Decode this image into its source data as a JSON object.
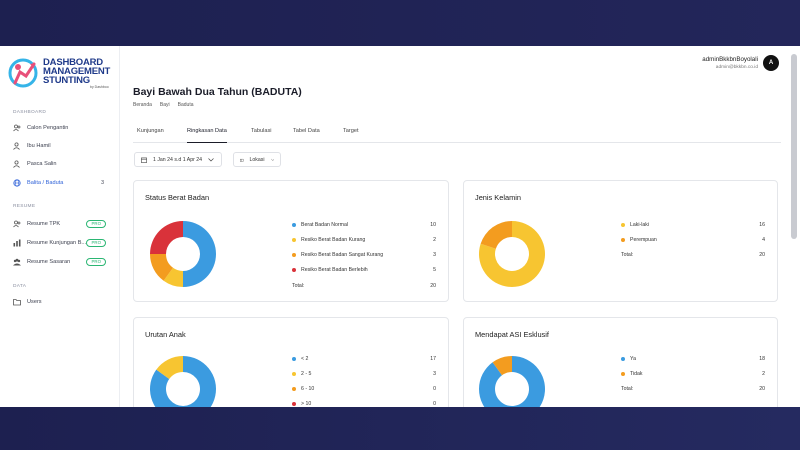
{
  "colors": {
    "blue": "#3b9be0",
    "yellow": "#f7c531",
    "orange": "#f39c1f",
    "red": "#d9323a",
    "accent": "#2f62d8",
    "pro": "#2bb673"
  },
  "logo": {
    "line1": "DASHBOARD",
    "line2": "MANAGEMENT",
    "line3": "STUNTING",
    "sub": "by Dashboo"
  },
  "sidebar": {
    "sections": [
      "DASHBOARD",
      "RESUME",
      "DATA"
    ],
    "dashboard_items": [
      {
        "label": "Calon Pengantin",
        "icon": "users-icon"
      },
      {
        "label": "Ibu Hamil",
        "icon": "user-icon"
      },
      {
        "label": "Pasca Salin",
        "icon": "user-icon"
      },
      {
        "label": "Balita / Baduta",
        "icon": "globe-icon",
        "count": "3"
      }
    ],
    "resume_items": [
      {
        "label": "Resume TPK",
        "badge": "PRO",
        "icon": "users-icon"
      },
      {
        "label": "Resume Kunjungan B...",
        "badge": "PRO",
        "icon": "bar-chart-icon"
      },
      {
        "label": "Resume Sasaran",
        "badge": "PRO",
        "icon": "group-icon"
      }
    ],
    "data_items": [
      {
        "label": "Users",
        "icon": "folder-icon"
      }
    ]
  },
  "header": {
    "user_name": "adminBkkbnBoyolali",
    "user_email": "admin@bkkbn.co.id",
    "avatar": "A"
  },
  "page": {
    "title": "Bayi Bawah Dua Tahun (BADUTA)",
    "breadcrumb": [
      "Beranda",
      "Bayi",
      "Baduta"
    ],
    "tabs": [
      "Kunjungan",
      "Ringkasan Data",
      "Tabulasi",
      "Tabel Data",
      "Target"
    ],
    "active_tab": 1,
    "date_filter": "1 Jan 24 s.d 1 Apr 24",
    "location_filter": "Lokasi"
  },
  "cards": [
    {
      "title": "Status Berat Badan",
      "total_label": "Total:",
      "total": "20",
      "items": [
        {
          "label": "Berat Badan Normal",
          "value": 10,
          "color": "#3b9be0"
        },
        {
          "label": "Resiko Berat Badan Kurang",
          "value": 2,
          "color": "#f7c531"
        },
        {
          "label": "Resiko Berat Badan Sangat Kurang",
          "value": 3,
          "color": "#f39c1f"
        },
        {
          "label": "Resiko Berat Badan Berlebih",
          "value": 5,
          "color": "#d9323a"
        }
      ]
    },
    {
      "title": "Jenis Kelamin",
      "total_label": "Total:",
      "total": "20",
      "items": [
        {
          "label": "Laki-laki",
          "value": 16,
          "color": "#f7c531"
        },
        {
          "label": "Perempuan",
          "value": 4,
          "color": "#f39c1f"
        }
      ]
    },
    {
      "title": "Urutan Anak",
      "total_label": "",
      "total": "",
      "items": [
        {
          "label": "< 2",
          "value": 17,
          "color": "#3b9be0"
        },
        {
          "label": "2 - 5",
          "value": 3,
          "color": "#f7c531"
        },
        {
          "label": "6 - 10",
          "value": 0,
          "color": "#f39c1f"
        },
        {
          "label": "> 10",
          "value": 0,
          "color": "#d9323a"
        }
      ]
    },
    {
      "title": "Mendapat ASI Esklusif",
      "total_label": "Total:",
      "total": "20",
      "items": [
        {
          "label": "Ya",
          "value": 18,
          "color": "#3b9be0"
        },
        {
          "label": "Tidak",
          "value": 2,
          "color": "#f39c1f"
        }
      ]
    }
  ]
}
